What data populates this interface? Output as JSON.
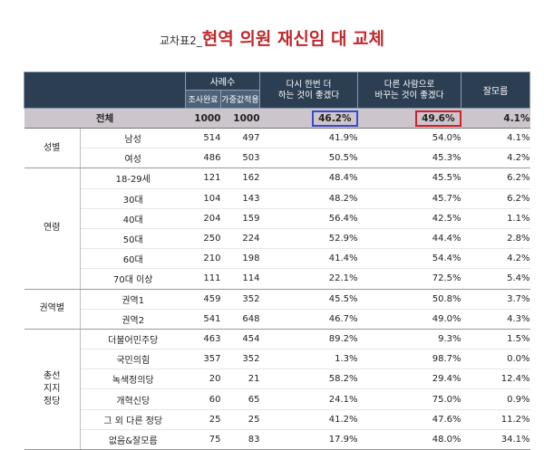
{
  "title": {
    "prefix": "교차표2_",
    "main": "현역 의원 재신임 대 교체"
  },
  "colors": {
    "header_bg": "#2c3e52",
    "total_bg": "#ccc5cb",
    "title_red": "#c0282d",
    "box_blue": "#3d49c9",
    "box_red": "#d3202a"
  },
  "header": {
    "sample": "사례수",
    "sample_sub": [
      "조사완료",
      "가중값적용"
    ],
    "opt1": [
      "다시 한번 더",
      "하는 것이 좋겠다"
    ],
    "opt2": [
      "다른 사람으로",
      "바꾸는 것이 좋겠다"
    ],
    "opt3": "잘모름"
  },
  "total": {
    "label": "전체",
    "n1": "1000",
    "n2": "1000",
    "v1": "46.2%",
    "v2": "49.6%",
    "v3": "4.1%"
  },
  "groups": [
    {
      "name": "성별",
      "rows": [
        {
          "label": "남성",
          "n1": "514",
          "n2": "497",
          "v1": "41.9%",
          "v2": "54.0%",
          "v3": "4.1%"
        },
        {
          "label": "여성",
          "n1": "486",
          "n2": "503",
          "v1": "50.5%",
          "v2": "45.3%",
          "v3": "4.2%"
        }
      ]
    },
    {
      "name": "연령",
      "rows": [
        {
          "label": "18-29세",
          "n1": "121",
          "n2": "162",
          "v1": "48.4%",
          "v2": "45.5%",
          "v3": "6.2%"
        },
        {
          "label": "30대",
          "n1": "104",
          "n2": "143",
          "v1": "48.2%",
          "v2": "45.7%",
          "v3": "6.2%"
        },
        {
          "label": "40대",
          "n1": "204",
          "n2": "159",
          "v1": "56.4%",
          "v2": "42.5%",
          "v3": "1.1%"
        },
        {
          "label": "50대",
          "n1": "250",
          "n2": "224",
          "v1": "52.9%",
          "v2": "44.4%",
          "v3": "2.8%"
        },
        {
          "label": "60대",
          "n1": "210",
          "n2": "198",
          "v1": "41.4%",
          "v2": "54.4%",
          "v3": "4.2%"
        },
        {
          "label": "70대 이상",
          "n1": "111",
          "n2": "114",
          "v1": "22.1%",
          "v2": "72.5%",
          "v3": "5.4%"
        }
      ]
    },
    {
      "name": "권역별",
      "rows": [
        {
          "label": "권역1",
          "n1": "459",
          "n2": "352",
          "v1": "45.5%",
          "v2": "50.8%",
          "v3": "3.7%"
        },
        {
          "label": "권역2",
          "n1": "541",
          "n2": "648",
          "v1": "46.7%",
          "v2": "49.0%",
          "v3": "4.3%"
        }
      ]
    },
    {
      "name": "총선\n지지\n정당",
      "rows": [
        {
          "label": "더불어민주당",
          "n1": "463",
          "n2": "454",
          "v1": "89.2%",
          "v2": "9.3%",
          "v3": "1.5%"
        },
        {
          "label": "국민의힘",
          "n1": "357",
          "n2": "352",
          "v1": "1.3%",
          "v2": "98.7%",
          "v3": "0.0%"
        },
        {
          "label": "녹색정의당",
          "n1": "20",
          "n2": "21",
          "v1": "58.2%",
          "v2": "29.4%",
          "v3": "12.4%"
        },
        {
          "label": "개혁신당",
          "n1": "60",
          "n2": "65",
          "v1": "24.1%",
          "v2": "75.0%",
          "v3": "0.9%"
        },
        {
          "label": "그 외 다른 정당",
          "n1": "25",
          "n2": "25",
          "v1": "41.2%",
          "v2": "47.6%",
          "v3": "11.2%"
        },
        {
          "label": "없음&잘모름",
          "n1": "75",
          "n2": "83",
          "v1": "17.9%",
          "v2": "48.0%",
          "v3": "34.1%"
        }
      ]
    }
  ]
}
